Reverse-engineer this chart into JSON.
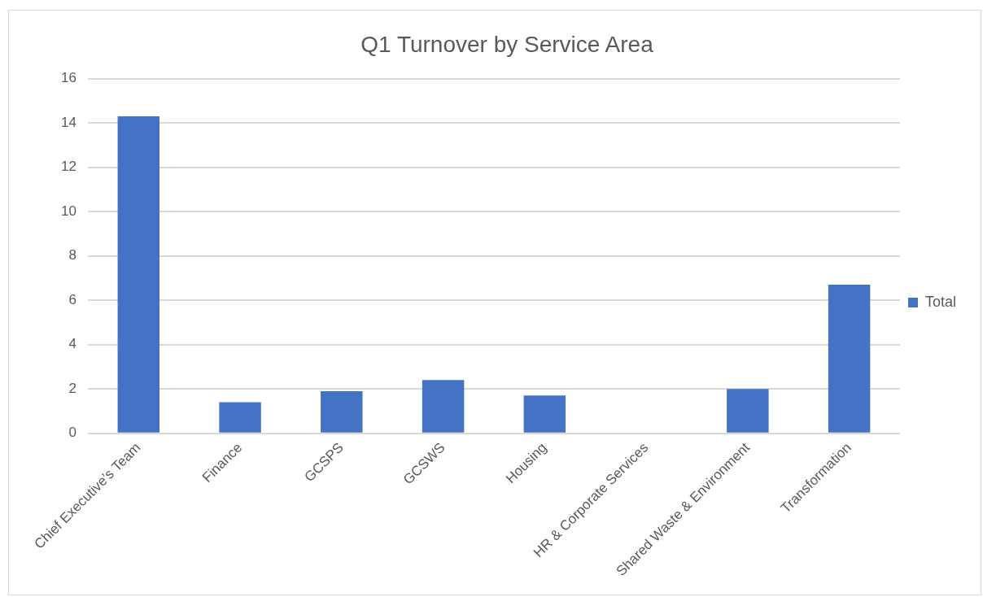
{
  "chart_data": {
    "type": "bar",
    "title": "Q1 Turnover by Service Area",
    "categories": [
      "Chief Executive’s Team",
      "Finance",
      "GCSPS",
      "GCSWS",
      "Housing",
      "HR & Corporate Services",
      "Shared Waste & Environment",
      "Transformation"
    ],
    "series": [
      {
        "name": "Total",
        "color": "#4472c4",
        "values": [
          14.3,
          1.4,
          1.9,
          2.4,
          1.7,
          0,
          2.0,
          6.7
        ]
      }
    ],
    "ylim": [
      0,
      16
    ],
    "yticks": [
      0,
      2,
      4,
      6,
      8,
      10,
      12,
      14,
      16
    ],
    "grid": "y",
    "legend": "right"
  }
}
